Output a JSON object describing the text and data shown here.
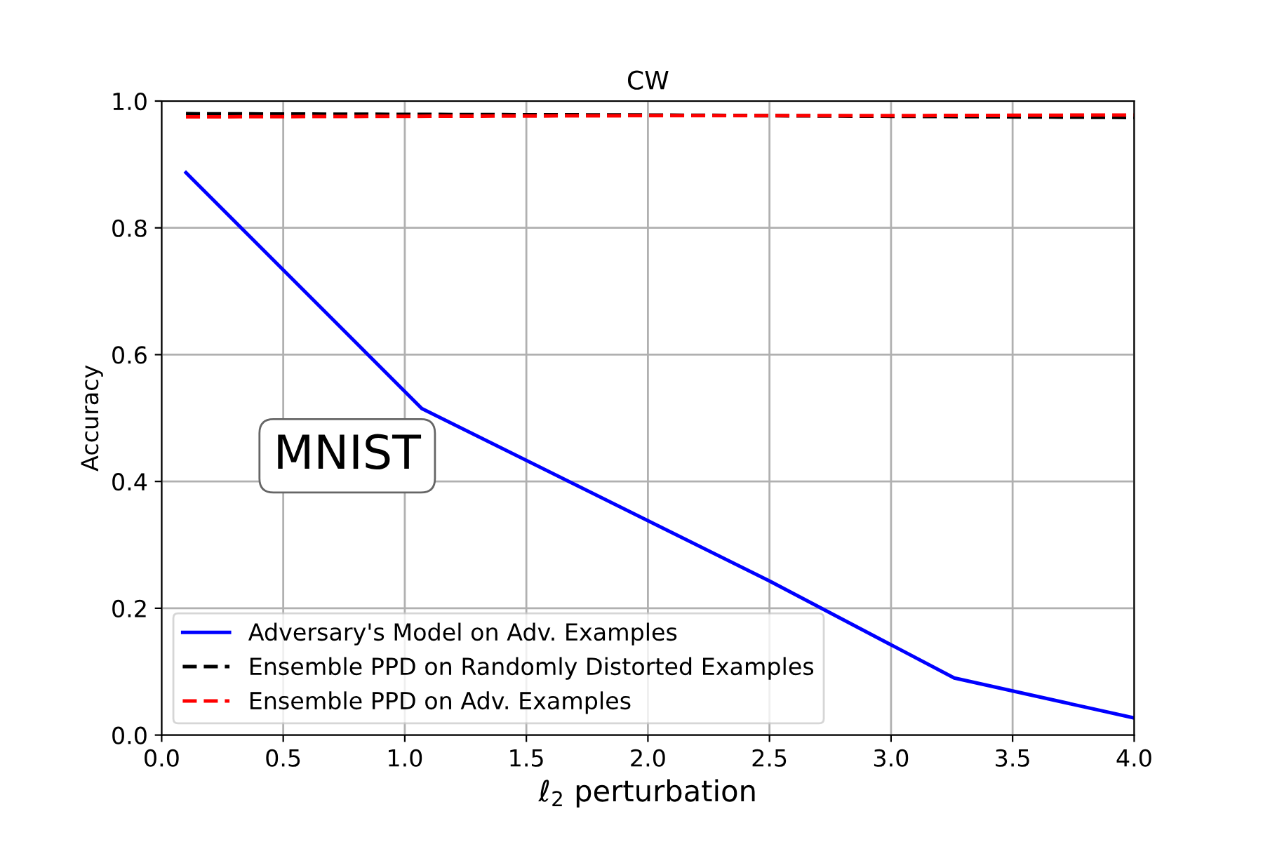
{
  "chart_data": {
    "type": "line",
    "title": "CW",
    "xlabel": "ℓ$_{2}$ perturbation",
    "ylabel": "Accuracy",
    "annotations": [
      "MNIST"
    ],
    "series": [
      {
        "name": "Adversary's Model on Adv. Examples",
        "color": "#0000ff",
        "line_style": "solid",
        "x": [
          0.1,
          1.07,
          2.5,
          3.26,
          4.0
        ],
        "values": [
          0.887,
          0.515,
          0.243,
          0.09,
          0.027
        ]
      },
      {
        "name": "Ensemble PPD on Randomly Distorted Examples",
        "color": "#000000",
        "line_style": "dashed",
        "x": [
          0.1,
          1.0,
          2.0,
          3.0,
          4.0
        ],
        "values": [
          0.98,
          0.979,
          0.978,
          0.976,
          0.974
        ]
      },
      {
        "name": "Ensemble PPD on Adv. Examples",
        "color": "#ff0000",
        "line_style": "dashed",
        "x": [
          0.1,
          1.0,
          2.0,
          3.0,
          4.0
        ],
        "values": [
          0.975,
          0.976,
          0.977,
          0.977,
          0.978
        ]
      }
    ],
    "xlim": [
      0,
      4
    ],
    "ylim": [
      0,
      1
    ],
    "xticks": [
      {
        "value": 0,
        "label": "0.0"
      },
      {
        "value": 0.5,
        "label": "0.5"
      },
      {
        "value": 1,
        "label": "1.0"
      },
      {
        "value": 1.5,
        "label": "1.5"
      },
      {
        "value": 2,
        "label": "2.0"
      },
      {
        "value": 2.5,
        "label": "2.5"
      },
      {
        "value": 3,
        "label": "3.0"
      },
      {
        "value": 3.5,
        "label": "3.5"
      },
      {
        "value": 4,
        "label": "4.0"
      }
    ],
    "yticks": [
      {
        "value": 0,
        "label": "0.0"
      },
      {
        "value": 0.2,
        "label": "0.2"
      },
      {
        "value": 0.4,
        "label": "0.4"
      },
      {
        "value": 0.6,
        "label": "0.6"
      },
      {
        "value": 0.8,
        "label": "0.8"
      },
      {
        "value": 1,
        "label": "1.0"
      }
    ],
    "grid": true,
    "legend": "bottom left",
    "marker": "none"
  }
}
